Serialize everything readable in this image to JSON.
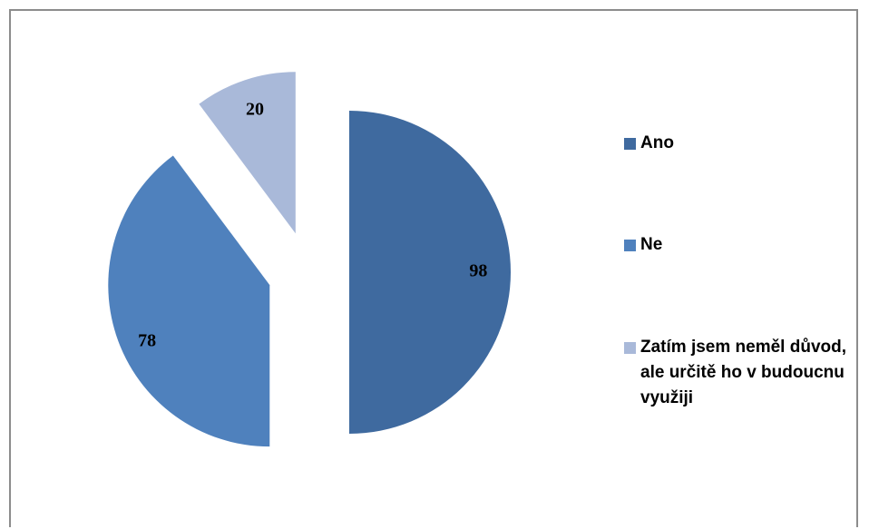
{
  "chart_data": {
    "type": "pie",
    "categories": [
      "Ano",
      "Ne",
      "Zatím jsem neměl důvod, ale určitě ho v budoucnu využiji"
    ],
    "values": [
      98,
      78,
      20
    ],
    "colors": [
      "#3f6a9f",
      "#4f81bd",
      "#a9b9d9"
    ],
    "exploded": true,
    "legend": "right"
  }
}
